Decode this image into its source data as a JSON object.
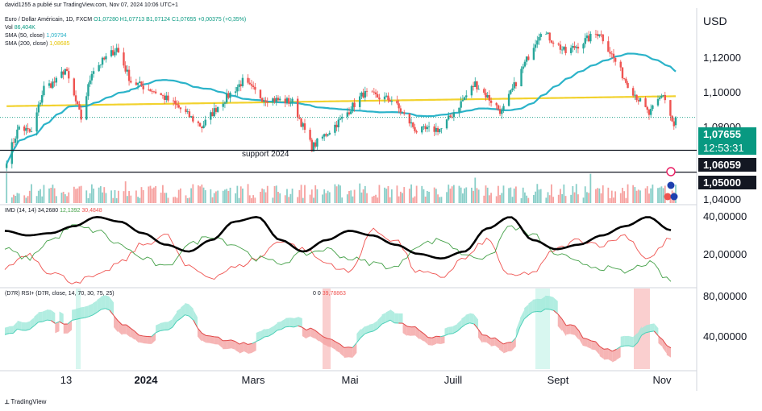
{
  "header": {
    "author_line": "david1255 a publié sur TradingView.com, Nov 07, 2024 10:06 UTC+1",
    "symbol": "Euro / Dollar Américain, 1D, FXCM",
    "ohlc": "O1,07280 H1,07713 B1,07124 C1,07655 +0,00375 (+0,35%)",
    "vol_label": "Vol",
    "vol_value": "86,404K",
    "sma50_label": "SMA (50, close)",
    "sma50_value": "1,09794",
    "sma200_label": "SMA (200, close)",
    "sma200_value": "1,08685"
  },
  "currency": "USD",
  "price_axis": [
    "1,12000",
    "1,10000",
    "1,08000",
    "1,04000"
  ],
  "price_tags": {
    "last": "1,07655",
    "countdown": "12:53:31",
    "support_1": "1,06059",
    "support_2": "1,05000"
  },
  "support_label": "support 2024",
  "imd_header": "IMD (14, 14)",
  "imd_values": [
    "34,2680",
    "12,1392",
    "30,4848"
  ],
  "imd_axis": [
    "40,00000",
    "20,00000"
  ],
  "rsi_header": "(D7R) RSI+ (D7R, close, 14, 70, 30, 75, 25)",
  "rsi_values": [
    "0",
    "0",
    "39,78863"
  ],
  "rsi_axis": [
    "80,00000",
    "40,00000"
  ],
  "time_axis": [
    {
      "label": "13",
      "year": false
    },
    {
      "label": "2024",
      "year": true
    },
    {
      "label": "Mars",
      "year": false
    },
    {
      "label": "Mai",
      "year": false
    },
    {
      "label": "Juill",
      "year": false
    },
    {
      "label": "Sept",
      "year": false
    },
    {
      "label": "Nov",
      "year": false
    }
  ],
  "footer": "TradingView",
  "colors": {
    "up": "#26a69a",
    "down": "#ef5350",
    "sma50": "#2bb3c9",
    "sma200": "#f2d22e",
    "last_tag": "#089981",
    "support_tag": "#131722",
    "adx": "#000000",
    "di_plus": "#43a047",
    "di_minus": "#ef5350"
  },
  "chart_data": [
    {
      "type": "candlestick",
      "title": "Euro / Dollar Américain, 1D, FXCM",
      "ylim": [
        1.035,
        1.128
      ],
      "x_range": [
        "2023-10-26",
        "2024-11-07"
      ],
      "close_path": [
        [
          "2023-10-27",
          1.056
        ],
        [
          "2023-11-03",
          1.072
        ],
        [
          "2023-11-10",
          1.069
        ],
        [
          "2023-11-17",
          1.091
        ],
        [
          "2023-11-24",
          1.094
        ],
        [
          "2023-11-29",
          1.1
        ],
        [
          "2023-12-08",
          1.076
        ],
        [
          "2023-12-14",
          1.099
        ],
        [
          "2023-12-28",
          1.11
        ],
        [
          "2024-01-05",
          1.094
        ],
        [
          "2024-01-19",
          1.089
        ],
        [
          "2024-01-31",
          1.082
        ],
        [
          "2024-02-14",
          1.072
        ],
        [
          "2024-02-23",
          1.082
        ],
        [
          "2024-03-08",
          1.094
        ],
        [
          "2024-03-19",
          1.086
        ],
        [
          "2024-04-05",
          1.084
        ],
        [
          "2024-04-16",
          1.062
        ],
        [
          "2024-05-03",
          1.076
        ],
        [
          "2024-05-15",
          1.088
        ],
        [
          "2024-05-31",
          1.085
        ],
        [
          "2024-06-14",
          1.07
        ],
        [
          "2024-06-28",
          1.071
        ],
        [
          "2024-07-17",
          1.093
        ],
        [
          "2024-08-01",
          1.079
        ],
        [
          "2024-08-23",
          1.119
        ],
        [
          "2024-09-06",
          1.108
        ],
        [
          "2024-09-25",
          1.118
        ],
        [
          "2024-10-10",
          1.094
        ],
        [
          "2024-10-23",
          1.078
        ],
        [
          "2024-10-31",
          1.088
        ],
        [
          "2024-11-06",
          1.072
        ],
        [
          "2024-11-07",
          1.07655
        ]
      ],
      "last": {
        "open": 1.0728,
        "high": 1.07713,
        "low": 1.07124,
        "close": 1.07655
      },
      "sma50": 1.09794,
      "sma200": 1.08685,
      "support_lines": [
        1.06059,
        1.05
      ]
    },
    {
      "type": "line",
      "title": "IMD (14, 14)",
      "ylim": [
        10,
        45
      ],
      "series": [
        {
          "name": "ADX",
          "values": [
            34,
            32,
            33,
            36,
            40,
            38,
            33,
            28,
            25,
            30,
            38,
            40,
            30,
            25,
            30,
            34,
            32,
            28,
            24,
            22,
            25,
            35,
            40,
            30,
            26,
            28,
            32,
            36,
            40,
            34.268
          ]
        },
        {
          "name": "+DI",
          "values": [
            26,
            22,
            30,
            36,
            34,
            28,
            22,
            18,
            28,
            32,
            28,
            22,
            20,
            24,
            26,
            22,
            20,
            18,
            28,
            30,
            24,
            22,
            36,
            32,
            24,
            20,
            18,
            16,
            20,
            12.1392
          ]
        },
        {
          "name": "-DI",
          "values": [
            18,
            24,
            16,
            12,
            14,
            20,
            28,
            32,
            18,
            14,
            18,
            22,
            30,
            26,
            20,
            16,
            34,
            30,
            16,
            14,
            22,
            30,
            14,
            16,
            26,
            30,
            28,
            32,
            22,
            30.4848
          ]
        }
      ]
    },
    {
      "type": "area",
      "title": "(D7R) RSI+ (D7R, close, 14, 70, 30, 75, 25)",
      "ylim": [
        20,
        90
      ],
      "series": [
        {
          "name": "RSI",
          "values": [
            50,
            55,
            62,
            60,
            66,
            72,
            58,
            48,
            55,
            66,
            50,
            45,
            42,
            48,
            58,
            55,
            46,
            38,
            52,
            62,
            58,
            48,
            50,
            60,
            48,
            42,
            68,
            72,
            58,
            44,
            36,
            40,
            54,
            39.78863
          ]
        }
      ]
    }
  ]
}
